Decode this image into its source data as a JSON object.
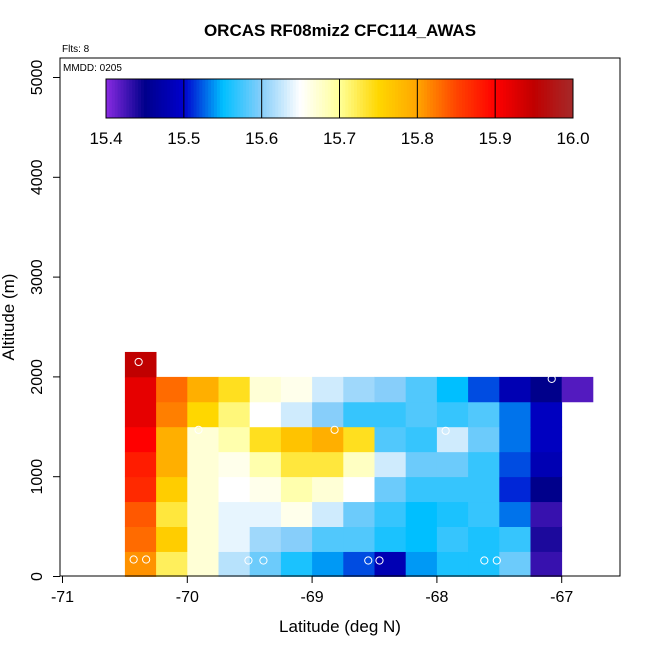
{
  "chart_data": {
    "type": "heatmap",
    "title": "ORCAS RF08miz2 CFC114_AWAS",
    "note_flts": "Flts: 8",
    "note_mmdd": "MMDD: 0205",
    "xlabel": "Latitude (deg N)",
    "ylabel": "Altitude (m)",
    "xlim": [
      -71,
      -66.5
    ],
    "ylim": [
      0,
      5200
    ],
    "x_ticks": [
      -71,
      -70,
      -69,
      -68,
      -67
    ],
    "x_tick_labels": [
      "-71",
      "-70",
      "-69",
      "-68",
      "-67"
    ],
    "y_ticks": [
      0,
      1000,
      2000,
      3000,
      4000,
      5000
    ],
    "y_tick_labels": [
      "0",
      "1000",
      "2000",
      "3000",
      "4000",
      "5000"
    ],
    "colorbar": {
      "range": [
        15.4,
        16.0
      ],
      "ticks": [
        15.4,
        15.5,
        15.6,
        15.7,
        15.8,
        15.9,
        16.0
      ],
      "tick_labels": [
        "15.4",
        "15.5",
        "15.6",
        "15.7",
        "15.8",
        "15.9",
        "16.0"
      ],
      "colors": [
        "#8a2be2",
        "#00008b",
        "#0000cd",
        "#00bfff",
        "#87cefa",
        "#ffffff",
        "#ffff99",
        "#ffd700",
        "#ffa500",
        "#ff4500",
        "#ff0000",
        "#c00000",
        "#a52a2a"
      ]
    },
    "cell_width_deg": 0.25,
    "cell_height_m": 250,
    "columns_lat_start": [
      -70.5,
      -70.25,
      -70.0,
      -69.75,
      -69.5,
      -69.25,
      -69.0,
      -68.75,
      -68.5,
      -68.25,
      -68.0,
      -67.75,
      -67.5,
      -67.25,
      -67.0
    ],
    "row_alt_start": [
      0,
      250,
      500,
      750,
      1000,
      1250,
      1500,
      1750,
      2000
    ],
    "values_by_row": [
      [
        15.81,
        15.72,
        15.67,
        15.62,
        15.59,
        15.56,
        15.54,
        15.52,
        15.48,
        15.54,
        15.56,
        15.56,
        15.59,
        15.43,
        null
      ],
      [
        15.83,
        15.76,
        15.67,
        15.64,
        15.61,
        15.6,
        15.58,
        15.58,
        15.56,
        15.55,
        15.57,
        15.56,
        15.57,
        15.44,
        null
      ],
      [
        15.84,
        15.73,
        15.67,
        15.64,
        15.64,
        15.66,
        15.63,
        15.59,
        15.57,
        15.55,
        15.56,
        15.57,
        15.53,
        15.43,
        null
      ],
      [
        15.87,
        15.76,
        15.67,
        15.65,
        15.66,
        15.69,
        15.67,
        15.65,
        15.59,
        15.57,
        15.57,
        15.57,
        15.51,
        15.45,
        null
      ],
      [
        15.88,
        15.79,
        15.67,
        15.66,
        15.69,
        15.73,
        15.73,
        15.68,
        15.63,
        15.59,
        15.59,
        15.57,
        15.52,
        15.48,
        null
      ],
      [
        15.9,
        15.79,
        15.67,
        15.69,
        15.74,
        15.77,
        15.79,
        15.74,
        15.58,
        15.57,
        15.63,
        15.59,
        15.53,
        15.49,
        null
      ],
      [
        15.92,
        15.82,
        15.75,
        15.71,
        15.65,
        15.63,
        15.6,
        15.57,
        15.57,
        15.58,
        15.57,
        15.58,
        15.53,
        15.49,
        null
      ],
      [
        15.92,
        15.83,
        15.79,
        15.74,
        15.67,
        15.66,
        15.63,
        15.61,
        15.6,
        15.58,
        15.55,
        15.52,
        15.48,
        15.45,
        15.42
      ],
      [
        15.95,
        null,
        null,
        null,
        null,
        null,
        null,
        null,
        null,
        null,
        null,
        null,
        null,
        null,
        null
      ]
    ],
    "sample_points": [
      {
        "lat": -70.43,
        "alt": 170
      },
      {
        "lat": -70.33,
        "alt": 170
      },
      {
        "lat": -69.51,
        "alt": 160
      },
      {
        "lat": -69.39,
        "alt": 160
      },
      {
        "lat": -68.55,
        "alt": 160
      },
      {
        "lat": -68.46,
        "alt": 160
      },
      {
        "lat": -67.62,
        "alt": 160
      },
      {
        "lat": -67.52,
        "alt": 160
      },
      {
        "lat": -69.91,
        "alt": 1470
      },
      {
        "lat": -68.82,
        "alt": 1470
      },
      {
        "lat": -67.93,
        "alt": 1460
      },
      {
        "lat": -70.39,
        "alt": 2150
      },
      {
        "lat": -67.08,
        "alt": 1980
      }
    ]
  }
}
